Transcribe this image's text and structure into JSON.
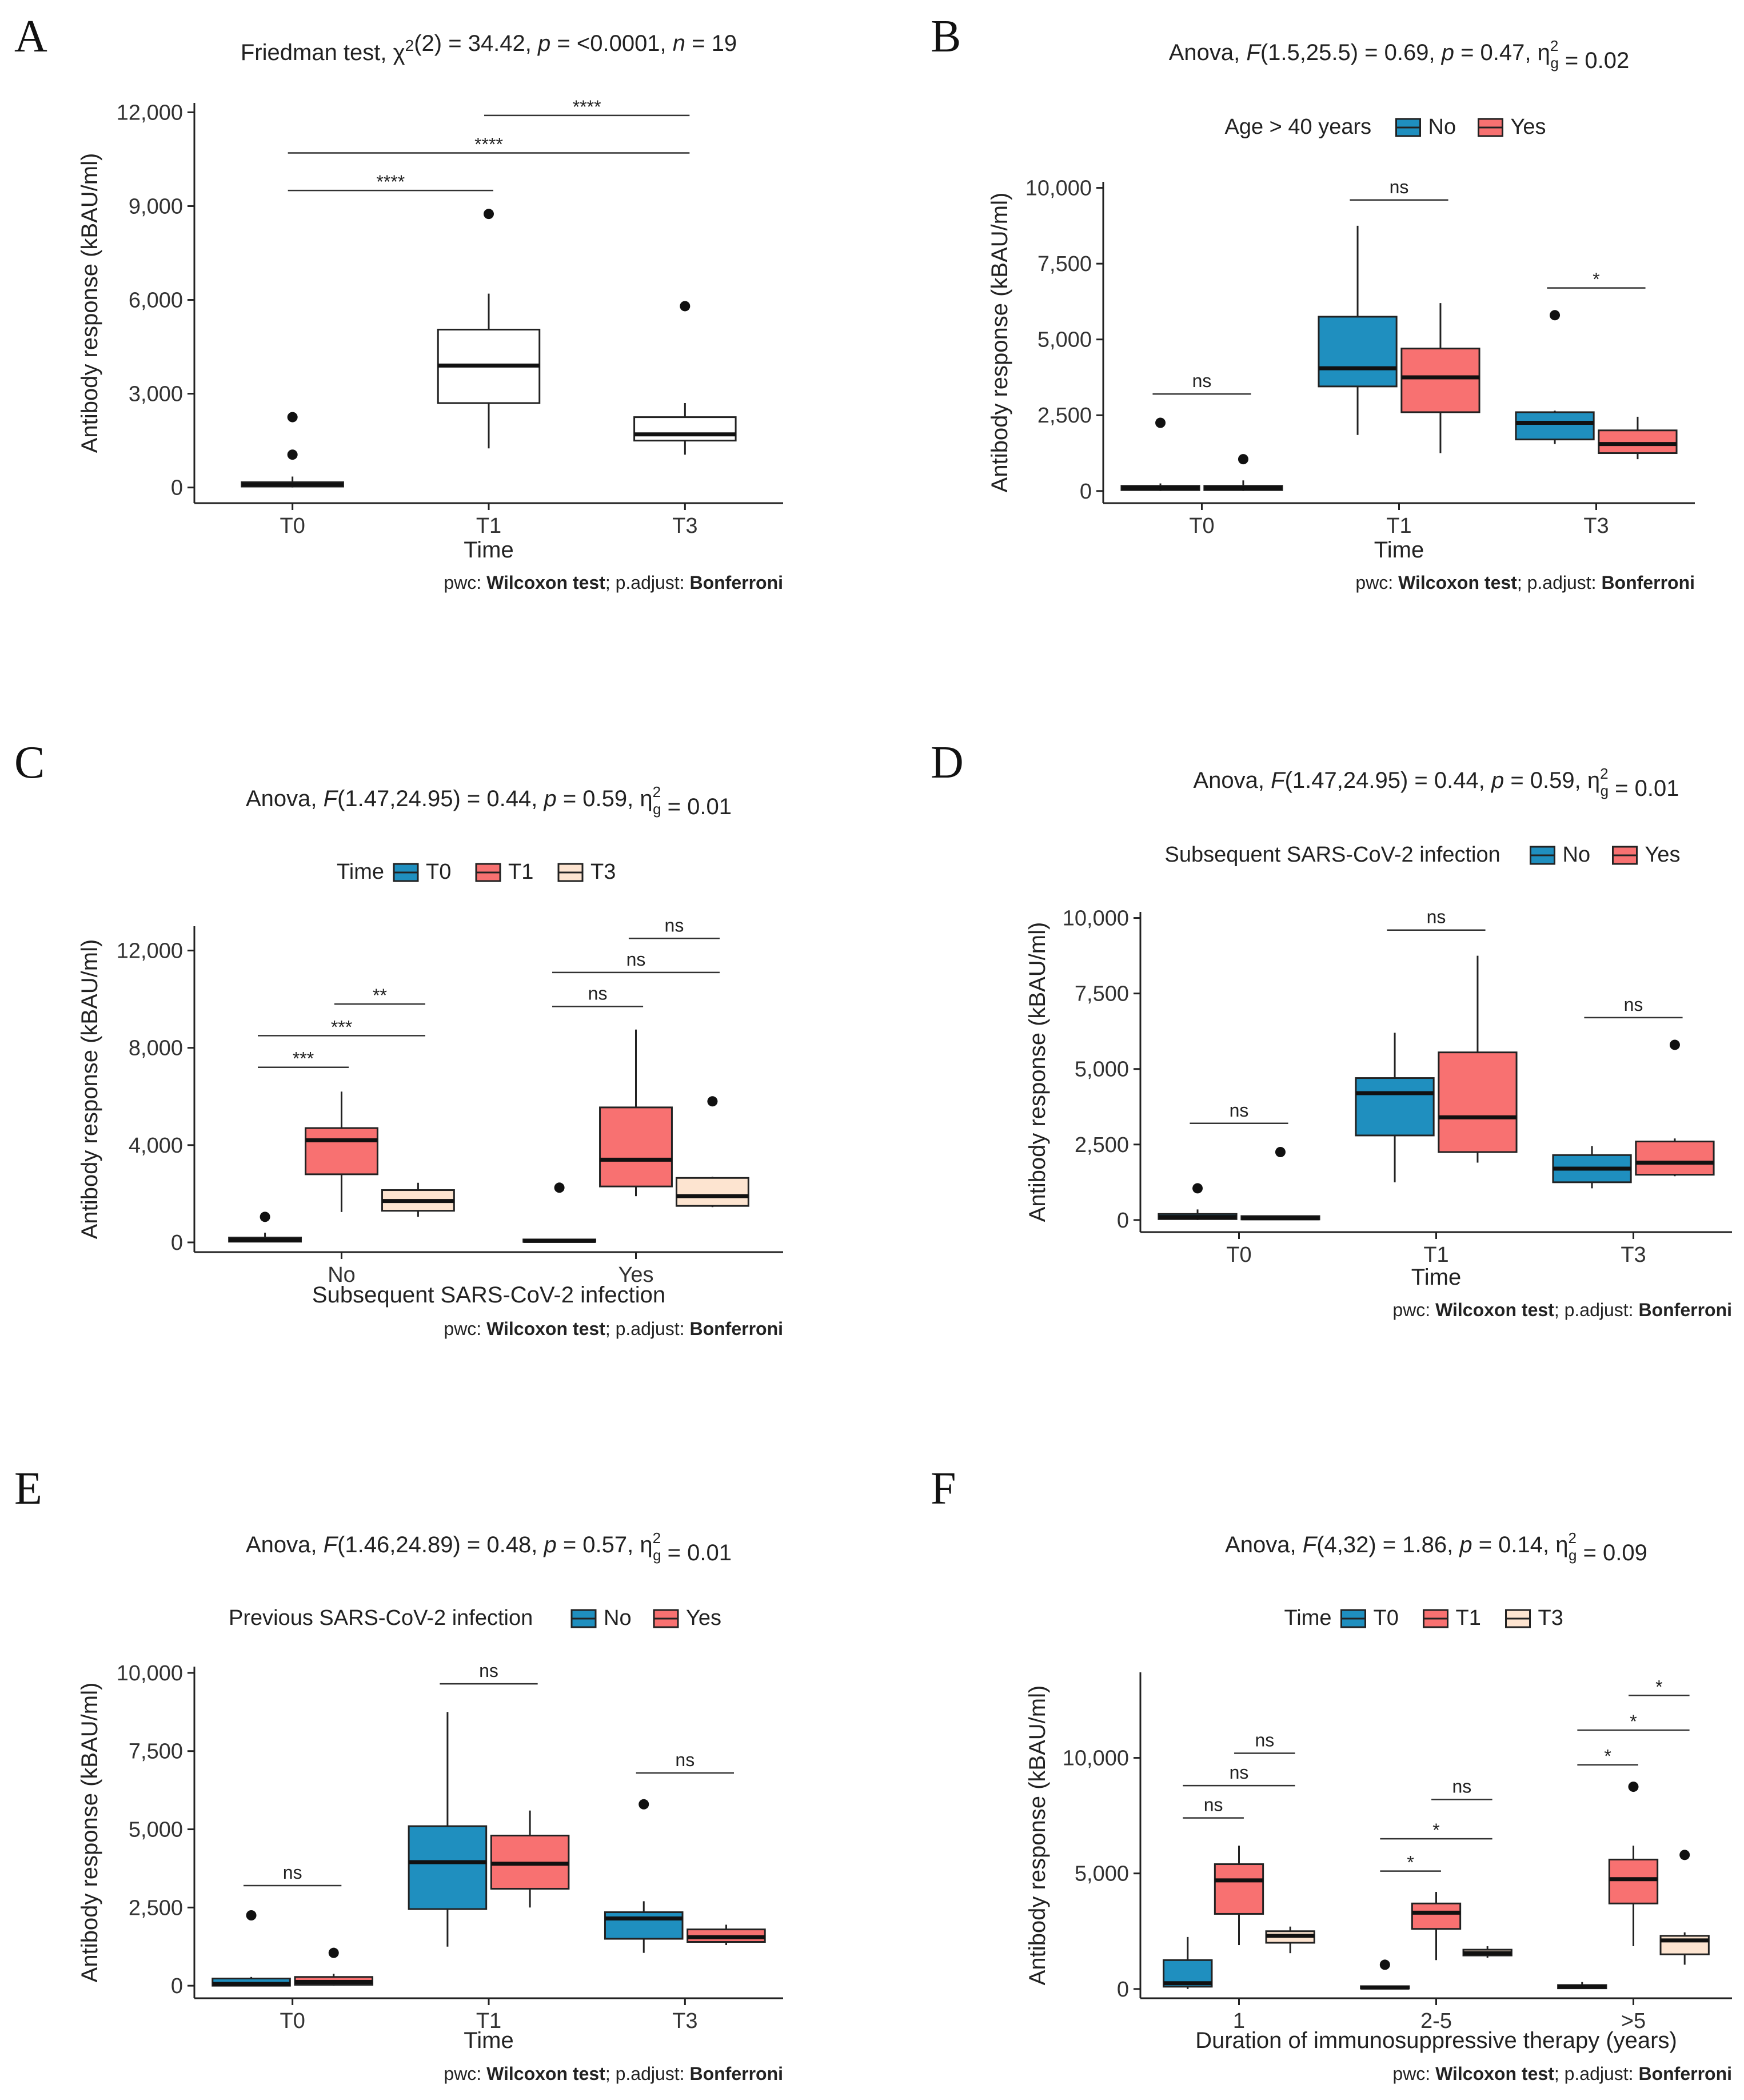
{
  "chart_data": [
    {
      "type": "box",
      "panel": "A",
      "title_plain": "Friedman test, χ²(2) = 34.42, p = <0.0001, n = 19",
      "title_parts": [
        {
          "t": "Friedman test, χ"
        },
        {
          "t": "2",
          "sup": true
        },
        {
          "t": "(2) = 34.42, "
        },
        {
          "t": "p",
          "i": true
        },
        {
          "t": " = <0.0001, "
        },
        {
          "t": "n",
          "i": true
        },
        {
          "t": " = 19"
        }
      ],
      "xlabel": "Time",
      "ylabel": "Antibody response (kBAU/ml)",
      "ylim": [
        -500,
        12300
      ],
      "yticks": [
        0,
        3000,
        6000,
        9000,
        12000
      ],
      "ytick_labels": [
        "0",
        "3,000",
        "6,000",
        "9,000",
        "12,000"
      ],
      "categories": [
        "T0",
        "T1",
        "T3"
      ],
      "series": [
        {
          "name": "All",
          "color": "#ffffff",
          "boxes": [
            {
              "q1": 30,
              "median": 100,
              "q3": 170,
              "wlo": 0,
              "whi": 350,
              "outliers": [
                1050,
                2250
              ]
            },
            {
              "q1": 2700,
              "median": 3900,
              "q3": 5050,
              "wlo": 1250,
              "whi": 6200,
              "outliers": [
                8750
              ]
            },
            {
              "q1": 1500,
              "median": 1700,
              "q3": 2250,
              "wlo": 1050,
              "whi": 2700,
              "outliers": [
                5800
              ]
            }
          ]
        }
      ],
      "comparisons": [
        {
          "from": 0,
          "to": 1,
          "y": 9500,
          "label": "****"
        },
        {
          "from": 0,
          "to": 2,
          "y": 10700,
          "label": "****"
        },
        {
          "from": 1,
          "to": 2,
          "y": 11900,
          "label": "****"
        }
      ],
      "note": {
        "prefix": "pwc: ",
        "test": "Wilcoxon test",
        "mid": "; p.adjust: ",
        "method": "Bonferroni"
      }
    },
    {
      "type": "box",
      "panel": "B",
      "title_plain": "Anova, F(1.5,25.5) = 0.69, p = 0.47, η²g = 0.02",
      "title_parts": [
        {
          "t": "Anova, "
        },
        {
          "t": "F",
          "i": true
        },
        {
          "t": "(1.5,25.5) = 0.69, "
        },
        {
          "t": "p",
          "i": true
        },
        {
          "t": " = 0.47, η"
        },
        {
          "t": "2",
          "supsub": "g"
        },
        {
          "t": " = 0.02"
        }
      ],
      "legend_title": "Age > 40 years",
      "legend": [
        "No",
        "Yes"
      ],
      "xlabel": "Time",
      "ylabel": "Antibody response (kBAU/ml)",
      "ylim": [
        -400,
        10200
      ],
      "yticks": [
        0,
        2500,
        5000,
        7500,
        10000
      ],
      "ytick_labels": [
        "0",
        "2,500",
        "5,000",
        "7,500",
        "10,000"
      ],
      "categories": [
        "T0",
        "T1",
        "T3"
      ],
      "series": [
        {
          "name": "No",
          "color": "#1f8fbf",
          "boxes": [
            {
              "q1": 30,
              "median": 100,
              "q3": 170,
              "wlo": 0,
              "whi": 250,
              "outliers": [
                2250
              ]
            },
            {
              "q1": 3450,
              "median": 4050,
              "q3": 5750,
              "wlo": 1850,
              "whi": 8750,
              "outliers": []
            },
            {
              "q1": 1700,
              "median": 2250,
              "q3": 2600,
              "wlo": 1550,
              "whi": 2650,
              "outliers": [
                5800
              ]
            }
          ]
        },
        {
          "name": "Yes",
          "color": "#f87171",
          "boxes": [
            {
              "q1": 30,
              "median": 100,
              "q3": 170,
              "wlo": 0,
              "whi": 350,
              "outliers": [
                1050
              ]
            },
            {
              "q1": 2600,
              "median": 3750,
              "q3": 4700,
              "wlo": 1250,
              "whi": 6200,
              "outliers": []
            },
            {
              "q1": 1250,
              "median": 1550,
              "q3": 2000,
              "wlo": 1050,
              "whi": 2450,
              "outliers": []
            }
          ]
        }
      ],
      "comparisons": [
        {
          "cat": 0,
          "y": 3200,
          "label": "ns"
        },
        {
          "cat": 1,
          "y": 9600,
          "label": "ns"
        },
        {
          "cat": 2,
          "y": 6700,
          "label": "*"
        }
      ],
      "note": {
        "prefix": "pwc: ",
        "test": "Wilcoxon test",
        "mid": "; p.adjust: ",
        "method": "Bonferroni"
      }
    },
    {
      "type": "box",
      "panel": "C",
      "title_plain": "Anova, F(1.47,24.95) = 0.44, p = 0.59, η²g = 0.01",
      "title_parts": [
        {
          "t": "Anova, "
        },
        {
          "t": "F",
          "i": true
        },
        {
          "t": "(1.47,24.95) = 0.44, "
        },
        {
          "t": "p",
          "i": true
        },
        {
          "t": " = 0.59, η"
        },
        {
          "t": "2",
          "supsub": "g"
        },
        {
          "t": " = 0.01"
        }
      ],
      "legend_title": "Time",
      "legend": [
        "T0",
        "T1",
        "T3"
      ],
      "xlabel": "Subsequent SARS-CoV-2 infection",
      "ylabel": "Antibody response (kBAU/ml)",
      "ylim": [
        -400,
        13000
      ],
      "yticks": [
        0,
        4000,
        8000,
        12000
      ],
      "ytick_labels": [
        "0",
        "4,000",
        "8,000",
        "12,000"
      ],
      "categories": [
        "No",
        "Yes"
      ],
      "series": [
        {
          "name": "T0",
          "color": "#1f8fbf",
          "boxes": [
            {
              "q1": 30,
              "median": 100,
              "q3": 200,
              "wlo": 0,
              "whi": 400,
              "outliers": [
                1050
              ]
            },
            {
              "q1": 20,
              "median": 60,
              "q3": 120,
              "wlo": 0,
              "whi": 150,
              "outliers": [
                2250
              ]
            }
          ]
        },
        {
          "name": "T1",
          "color": "#f87171",
          "boxes": [
            {
              "q1": 2800,
              "median": 4200,
              "q3": 4700,
              "wlo": 1250,
              "whi": 6200,
              "outliers": []
            },
            {
              "q1": 2300,
              "median": 3400,
              "q3": 5550,
              "wlo": 1900,
              "whi": 8750,
              "outliers": []
            }
          ]
        },
        {
          "name": "T3",
          "color": "#fde4d0",
          "boxes": [
            {
              "q1": 1300,
              "median": 1700,
              "q3": 2150,
              "wlo": 1050,
              "whi": 2450,
              "outliers": []
            },
            {
              "q1": 1500,
              "median": 1900,
              "q3": 2650,
              "wlo": 1450,
              "whi": 2700,
              "outliers": [
                5800
              ]
            }
          ]
        }
      ],
      "comparisons": [
        {
          "cat": 0,
          "from": 0,
          "to": 1,
          "y": 7200,
          "label": "***"
        },
        {
          "cat": 0,
          "from": 0,
          "to": 2,
          "y": 8500,
          "label": "***"
        },
        {
          "cat": 0,
          "from": 1,
          "to": 2,
          "y": 9800,
          "label": "**"
        },
        {
          "cat": 1,
          "from": 0,
          "to": 1,
          "y": 9700,
          "label": "ns"
        },
        {
          "cat": 1,
          "from": 0,
          "to": 2,
          "y": 11100,
          "label": "ns"
        },
        {
          "cat": 1,
          "from": 1,
          "to": 2,
          "y": 12500,
          "label": "ns"
        }
      ],
      "note": {
        "prefix": "pwc: ",
        "test": "Wilcoxon test",
        "mid": "; p.adjust: ",
        "method": "Bonferroni"
      }
    },
    {
      "type": "box",
      "panel": "D",
      "title_plain": "Anova, F(1.47,24.95) = 0.44, p = 0.59, η²g = 0.01",
      "title_parts": [
        {
          "t": "Anova, "
        },
        {
          "t": "F",
          "i": true
        },
        {
          "t": "(1.47,24.95) = 0.44, "
        },
        {
          "t": "p",
          "i": true
        },
        {
          "t": " = 0.59, η"
        },
        {
          "t": "2",
          "supsub": "g"
        },
        {
          "t": " = 0.01"
        }
      ],
      "legend_title": "Subsequent SARS-CoV-2 infection",
      "legend": [
        "No",
        "Yes"
      ],
      "xlabel": "Time",
      "ylabel": "Antibody response (kBAU/ml)",
      "ylim": [
        -400,
        10200
      ],
      "yticks": [
        0,
        2500,
        5000,
        7500,
        10000
      ],
      "ytick_labels": [
        "0",
        "2,500",
        "5,000",
        "7,500",
        "10,000"
      ],
      "categories": [
        "T0",
        "T1",
        "T3"
      ],
      "series": [
        {
          "name": "No",
          "color": "#1f8fbf",
          "boxes": [
            {
              "q1": 30,
              "median": 100,
              "q3": 200,
              "wlo": 0,
              "whi": 350,
              "outliers": [
                1050
              ]
            },
            {
              "q1": 2800,
              "median": 4200,
              "q3": 4700,
              "wlo": 1250,
              "whi": 6200,
              "outliers": []
            },
            {
              "q1": 1250,
              "median": 1700,
              "q3": 2150,
              "wlo": 1050,
              "whi": 2450,
              "outliers": []
            }
          ]
        },
        {
          "name": "Yes",
          "color": "#f87171",
          "boxes": [
            {
              "q1": 20,
              "median": 60,
              "q3": 130,
              "wlo": 0,
              "whi": 150,
              "outliers": [
                2250
              ]
            },
            {
              "q1": 2250,
              "median": 3400,
              "q3": 5550,
              "wlo": 1900,
              "whi": 8750,
              "outliers": []
            },
            {
              "q1": 1500,
              "median": 1900,
              "q3": 2600,
              "wlo": 1450,
              "whi": 2700,
              "outliers": [
                5800
              ]
            }
          ]
        }
      ],
      "comparisons": [
        {
          "cat": 0,
          "y": 3200,
          "label": "ns"
        },
        {
          "cat": 1,
          "y": 9600,
          "label": "ns"
        },
        {
          "cat": 2,
          "y": 6700,
          "label": "ns"
        }
      ],
      "note": {
        "prefix": "pwc: ",
        "test": "Wilcoxon test",
        "mid": "; p.adjust: ",
        "method": "Bonferroni"
      }
    },
    {
      "type": "box",
      "panel": "E",
      "title_plain": "Anova, F(1.46,24.89) = 0.48, p = 0.57, η²g = 0.01",
      "title_parts": [
        {
          "t": "Anova, "
        },
        {
          "t": "F",
          "i": true
        },
        {
          "t": "(1.46,24.89) = 0.48, "
        },
        {
          "t": "p",
          "i": true
        },
        {
          "t": " = 0.57, η"
        },
        {
          "t": "2",
          "supsub": "g"
        },
        {
          "t": " = 0.01"
        }
      ],
      "legend_title": "Previous SARS-CoV-2 infection",
      "legend": [
        "No",
        "Yes"
      ],
      "xlabel": "Time",
      "ylabel": "Antibody response (kBAU/ml)",
      "ylim": [
        -400,
        10200
      ],
      "yticks": [
        0,
        2500,
        5000,
        7500,
        10000
      ],
      "ytick_labels": [
        "0",
        "2,500",
        "5,000",
        "7,500",
        "10,000"
      ],
      "categories": [
        "T0",
        "T1",
        "T3"
      ],
      "series": [
        {
          "name": "No",
          "color": "#1f8fbf",
          "boxes": [
            {
              "q1": 0,
              "median": 60,
              "q3": 230,
              "wlo": 0,
              "whi": 280,
              "outliers": [
                2250
              ]
            },
            {
              "q1": 2450,
              "median": 3950,
              "q3": 5100,
              "wlo": 1250,
              "whi": 8750,
              "outliers": []
            },
            {
              "q1": 1500,
              "median": 2150,
              "q3": 2350,
              "wlo": 1050,
              "whi": 2700,
              "outliers": [
                5800
              ]
            }
          ]
        },
        {
          "name": "Yes",
          "color": "#f87171",
          "boxes": [
            {
              "q1": 30,
              "median": 120,
              "q3": 280,
              "wlo": 0,
              "whi": 380,
              "outliers": [
                1050
              ]
            },
            {
              "q1": 3100,
              "median": 3900,
              "q3": 4800,
              "wlo": 2500,
              "whi": 5600,
              "outliers": []
            },
            {
              "q1": 1400,
              "median": 1550,
              "q3": 1800,
              "wlo": 1300,
              "whi": 1950,
              "outliers": []
            }
          ]
        }
      ],
      "comparisons": [
        {
          "cat": 0,
          "y": 3200,
          "label": "ns"
        },
        {
          "cat": 1,
          "y": 9650,
          "label": "ns"
        },
        {
          "cat": 2,
          "y": 6800,
          "label": "ns"
        }
      ],
      "note": {
        "prefix": "pwc: ",
        "test": "Wilcoxon test",
        "mid": "; p.adjust: ",
        "method": "Bonferroni"
      }
    },
    {
      "type": "box",
      "panel": "F",
      "title_plain": "Anova, F(4,32) = 1.86, p = 0.14, η²g = 0.09",
      "title_parts": [
        {
          "t": "Anova, "
        },
        {
          "t": "F",
          "i": true
        },
        {
          "t": "(4,32) = 1.86, "
        },
        {
          "t": "p",
          "i": true
        },
        {
          "t": " = 0.14, η"
        },
        {
          "t": "2",
          "supsub": "g"
        },
        {
          "t": " = 0.09"
        }
      ],
      "legend_title": "Time",
      "legend": [
        "T0",
        "T1",
        "T3"
      ],
      "xlabel": "Duration of immunosuppressive therapy (years)",
      "ylabel": "Antibody response (kBAU/ml)",
      "ylim": [
        -400,
        13700
      ],
      "yticks": [
        0,
        5000,
        10000
      ],
      "ytick_labels": [
        "0",
        "5,000",
        "10,000"
      ],
      "categories": [
        "1",
        "2-5",
        ">5"
      ],
      "series": [
        {
          "name": "T0",
          "color": "#1f8fbf",
          "boxes": [
            {
              "q1": 100,
              "median": 250,
              "q3": 1250,
              "wlo": 0,
              "whi": 2250,
              "outliers": []
            },
            {
              "q1": 20,
              "median": 60,
              "q3": 120,
              "wlo": 0,
              "whi": 150,
              "outliers": [
                1050
              ]
            },
            {
              "q1": 30,
              "median": 100,
              "q3": 170,
              "wlo": 0,
              "whi": 300,
              "outliers": []
            }
          ]
        },
        {
          "name": "T1",
          "color": "#f87171",
          "boxes": [
            {
              "q1": 3250,
              "median": 4700,
              "q3": 5400,
              "wlo": 1900,
              "whi": 6200,
              "outliers": []
            },
            {
              "q1": 2600,
              "median": 3300,
              "q3": 3700,
              "wlo": 1250,
              "whi": 4200,
              "outliers": []
            },
            {
              "q1": 3700,
              "median": 4750,
              "q3": 5600,
              "wlo": 1850,
              "whi": 6200,
              "outliers": [
                8750
              ]
            }
          ]
        },
        {
          "name": "T3",
          "color": "#fde4d0",
          "boxes": [
            {
              "q1": 2000,
              "median": 2300,
              "q3": 2500,
              "wlo": 1550,
              "whi": 2700,
              "outliers": []
            },
            {
              "q1": 1450,
              "median": 1550,
              "q3": 1700,
              "wlo": 1350,
              "whi": 1850,
              "outliers": []
            },
            {
              "q1": 1500,
              "median": 2100,
              "q3": 2300,
              "wlo": 1050,
              "whi": 2450,
              "outliers": [
                5800
              ]
            }
          ]
        }
      ],
      "comparisons": [
        {
          "cat": 0,
          "from": 0,
          "to": 1,
          "y": 7400,
          "label": "ns"
        },
        {
          "cat": 0,
          "from": 0,
          "to": 2,
          "y": 8800,
          "label": "ns"
        },
        {
          "cat": 0,
          "from": 1,
          "to": 2,
          "y": 10200,
          "label": "ns"
        },
        {
          "cat": 1,
          "from": 0,
          "to": 1,
          "y": 5100,
          "label": "*"
        },
        {
          "cat": 1,
          "from": 0,
          "to": 2,
          "y": 6500,
          "label": "*"
        },
        {
          "cat": 1,
          "from": 1,
          "to": 2,
          "y": 8200,
          "label": "ns"
        },
        {
          "cat": 2,
          "from": 0,
          "to": 1,
          "y": 9700,
          "label": "*"
        },
        {
          "cat": 2,
          "from": 0,
          "to": 2,
          "y": 11200,
          "label": "*"
        },
        {
          "cat": 2,
          "from": 1,
          "to": 2,
          "y": 12700,
          "label": "*"
        }
      ],
      "note": {
        "prefix": "pwc: ",
        "test": "Wilcoxon test",
        "mid": "; p.adjust: ",
        "method": "Bonferroni"
      }
    }
  ]
}
